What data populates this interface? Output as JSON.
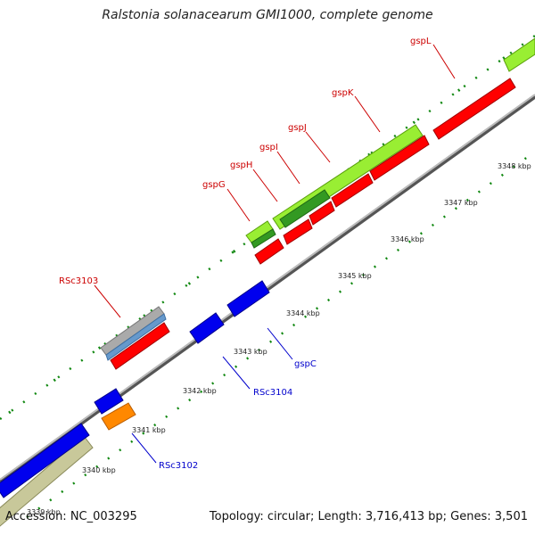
{
  "title": "Ralstonia solanacearum GMI1000, complete genome",
  "accession": "Accession: NC_003295",
  "summary": "Topology: circular; Length: 3,716,413 bp; Genes: 3,501",
  "scale_labels": [
    "3340 kbp",
    "3341 kbp",
    "3342 kbp",
    "3343 kbp",
    "3344 kbp",
    "3345 kbp",
    "3346 kbp",
    "3347 kbp",
    "3348 kbp"
  ],
  "partial_scale_label": "3339 kbp",
  "gene_labels_red": [
    "gspL",
    "gspK",
    "gspJ",
    "gspI",
    "gspH",
    "gspG",
    "RSc3103"
  ],
  "gene_labels_blue": [
    "gspC",
    "RSc3104",
    "RSc3102"
  ],
  "colors": {
    "red": "#ff0000",
    "blue": "#0000ee",
    "lime": "#99ee33",
    "green": "#339922",
    "orange": "#ff8800",
    "khaki": "#c8c89a",
    "gray": "#888888",
    "steel": "#6699cc",
    "label_red": "#cc0000",
    "label_blue": "#0000cc",
    "tick": "#118811"
  }
}
